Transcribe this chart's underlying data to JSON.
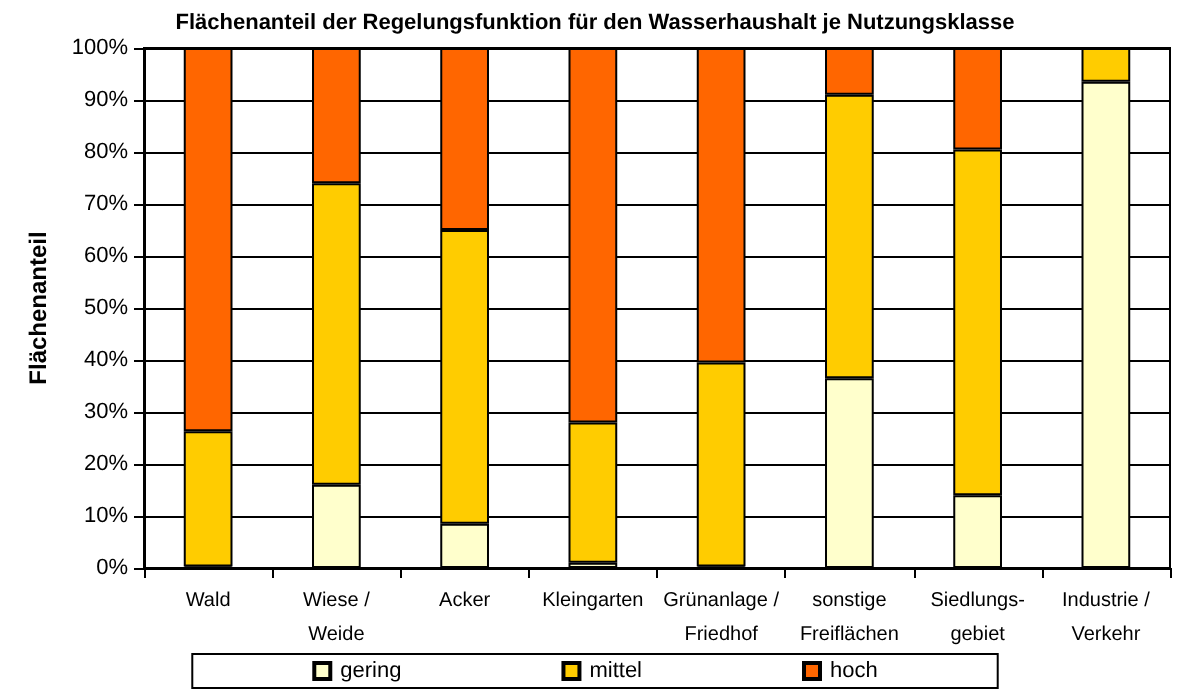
{
  "chart_data": {
    "type": "bar",
    "stacked": true,
    "title": "Flächenanteil der Regelungsfunktion für den Wasserhaushalt je Nutzungsklasse",
    "ylabel": "Flächenanteil",
    "categories": [
      "Wald",
      "Wiese /\nWeide",
      "Acker",
      "Kleingarten",
      "Grünanlage /\nFriedhof",
      "sonstige\nFreiflächen",
      "Siedlungs-\ngebiet",
      "Industrie /\nVerkehr"
    ],
    "series": [
      {
        "name": "gering",
        "color": "#ffffcc",
        "values": [
          0.3,
          16,
          8.5,
          1,
          0.3,
          36.5,
          14,
          93.5
        ]
      },
      {
        "name": "mittel",
        "color": "#ffcc00",
        "values": [
          26,
          58,
          56.5,
          27,
          39.2,
          54.5,
          66.5,
          6.5
        ]
      },
      {
        "name": "hoch",
        "color": "#ff6600",
        "values": [
          73.7,
          26,
          35,
          72,
          60.5,
          9,
          19.5,
          null
        ]
      }
    ],
    "ylim": [
      0,
      100
    ],
    "yticks": [
      {
        "value": 0,
        "label": "0%"
      },
      {
        "value": 10,
        "label": "10%"
      },
      {
        "value": 20,
        "label": "20%"
      },
      {
        "value": 30,
        "label": "30%"
      },
      {
        "value": 40,
        "label": "40%"
      },
      {
        "value": 50,
        "label": "50%"
      },
      {
        "value": 60,
        "label": "60%"
      },
      {
        "value": 70,
        "label": "70%"
      },
      {
        "value": 80,
        "label": "80%"
      },
      {
        "value": 90,
        "label": "90%"
      },
      {
        "value": 100,
        "label": "100%"
      }
    ],
    "grid": "y",
    "legend": "bottom"
  }
}
